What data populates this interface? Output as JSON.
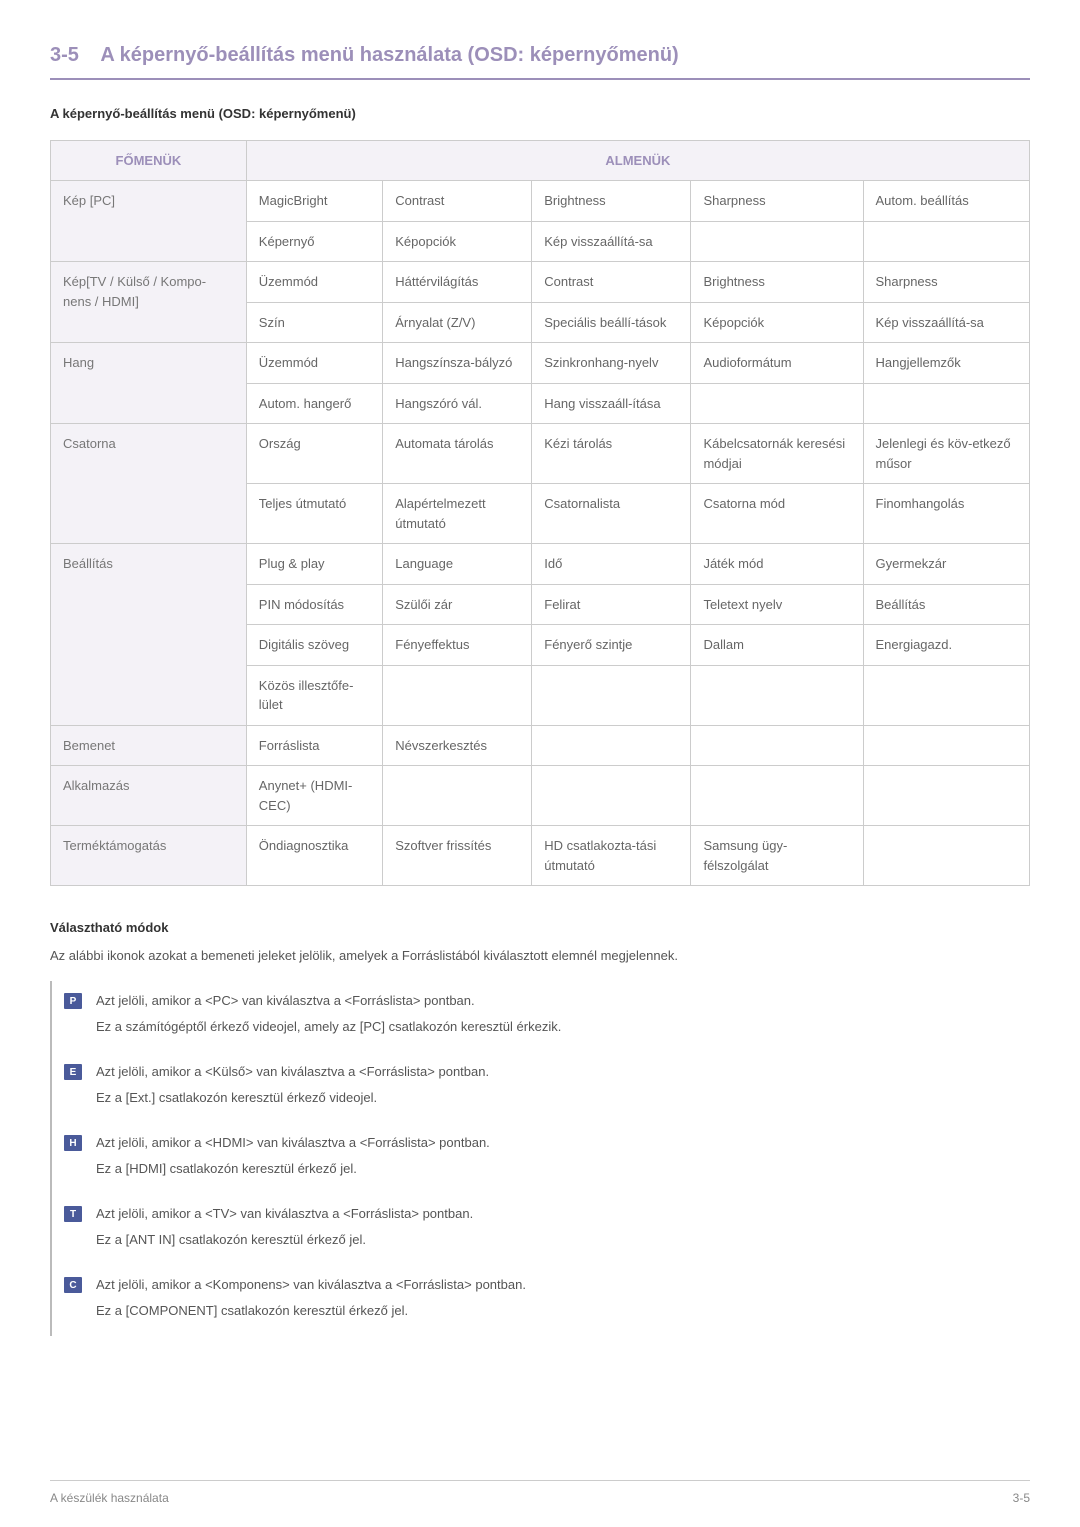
{
  "section": {
    "number": "3-5",
    "title": "A képernyő-beállítás menü használata (OSD: képernyőmenü)"
  },
  "subTitle": "A képernyő-beállítás menü (OSD: képernyőmenü)",
  "tableHeaders": {
    "main": "FŐMENÜK",
    "sub": "ALMENÜK"
  },
  "rows": [
    {
      "main": "Kép [PC]",
      "rows": [
        [
          "MagicBright",
          "Contrast",
          "Brightness",
          "Sharpness",
          "Autom. beállítás"
        ],
        [
          "Képernyő",
          "Képopciók",
          "Kép visszaállítá-sa",
          "",
          ""
        ]
      ]
    },
    {
      "main": "Kép[TV / Külső / Kompo-nens / HDMI]",
      "rows": [
        [
          "Üzemmód",
          "Háttérvilágítás",
          "Contrast",
          "Brightness",
          "Sharpness"
        ],
        [
          "Szín",
          "Árnyalat (Z/V)",
          "Speciális beállí-tások",
          "Képopciók",
          "Kép visszaállítá-sa"
        ]
      ]
    },
    {
      "main": "Hang",
      "rows": [
        [
          "Üzemmód",
          "Hangszínsza-bályzó",
          "Szinkronhang-nyelv",
          "Audioformátum",
          "Hangjellemzők"
        ],
        [
          "Autom. hangerő",
          "Hangszóró vál.",
          "Hang visszaáll-ítása",
          "",
          ""
        ]
      ]
    },
    {
      "main": "Csatorna",
      "rows": [
        [
          "Ország",
          "Automata tárolás",
          "Kézi tárolás",
          "Kábelcsatornák keresési módjai",
          "Jelenlegi és köv-etkező műsor"
        ],
        [
          "Teljes útmutató",
          "Alapértelmezett útmutató",
          "Csatornalista",
          "Csatorna mód",
          "Finomhangolás"
        ]
      ]
    },
    {
      "main": "Beállítás",
      "rows": [
        [
          "Plug & play",
          "Language",
          "Idő",
          "Játék mód",
          "Gyermekzár"
        ],
        [
          "PIN módosítás",
          "Szülői zár",
          "Felirat",
          "Teletext nyelv",
          "Beállítás"
        ],
        [
          "Digitális szöveg",
          "Fényeffektus",
          "Fényerő szintje",
          "Dallam",
          "Energiagazd."
        ],
        [
          "Közös illesztőfe-lület",
          "",
          "",
          "",
          ""
        ]
      ]
    },
    {
      "main": "Bemenet",
      "rows": [
        [
          "Forráslista",
          "Névszerkesztés",
          "",
          "",
          ""
        ]
      ]
    },
    {
      "main": "Alkalmazás",
      "rows": [
        [
          "Anynet+ (HDMI-CEC)",
          "",
          "",
          "",
          ""
        ]
      ]
    },
    {
      "main": "Terméktámogatás",
      "rows": [
        [
          "Öndiagnosztika",
          "Szoftver frissítés",
          "HD csatlakozta-tási útmutató",
          "Samsung ügy-félszolgálat",
          ""
        ]
      ]
    }
  ],
  "modes": {
    "title": "Választható módok",
    "desc": "Az alábbi ikonok azokat a bemeneti jeleket jelölik, amelyek a Forráslistából kiválasztott elemnél megjelennek.",
    "items": [
      {
        "icon": "P",
        "line1": "Azt jelöli, amikor a <PC> van kiválasztva a <Forráslista> pontban.",
        "line2": "Ez a számítógéptől érkező videojel, amely az [PC] csatlakozón keresztül érkezik."
      },
      {
        "icon": "E",
        "line1": "Azt jelöli, amikor a <Külső> van kiválasztva a <Forráslista> pontban.",
        "line2": "Ez a [Ext.] csatlakozón keresztül érkező videojel."
      },
      {
        "icon": "H",
        "line1": "Azt jelöli, amikor a <HDMI> van kiválasztva a <Forráslista> pontban.",
        "line2": "Ez a [HDMI] csatlakozón keresztül érkező jel."
      },
      {
        "icon": "T",
        "line1": "Azt jelöli, amikor a <TV> van kiválasztva a <Forráslista> pontban.",
        "line2": "Ez a [ANT IN] csatlakozón keresztül érkező jel."
      },
      {
        "icon": "C",
        "line1": "Azt jelöli, amikor a <Komponens> van kiválasztva a <Forráslista> pontban.",
        "line2": "Ez a [COMPONENT] csatlakozón keresztül érkező jel."
      }
    ]
  },
  "footer": {
    "left": "A készülék használata",
    "right": "3-5"
  }
}
